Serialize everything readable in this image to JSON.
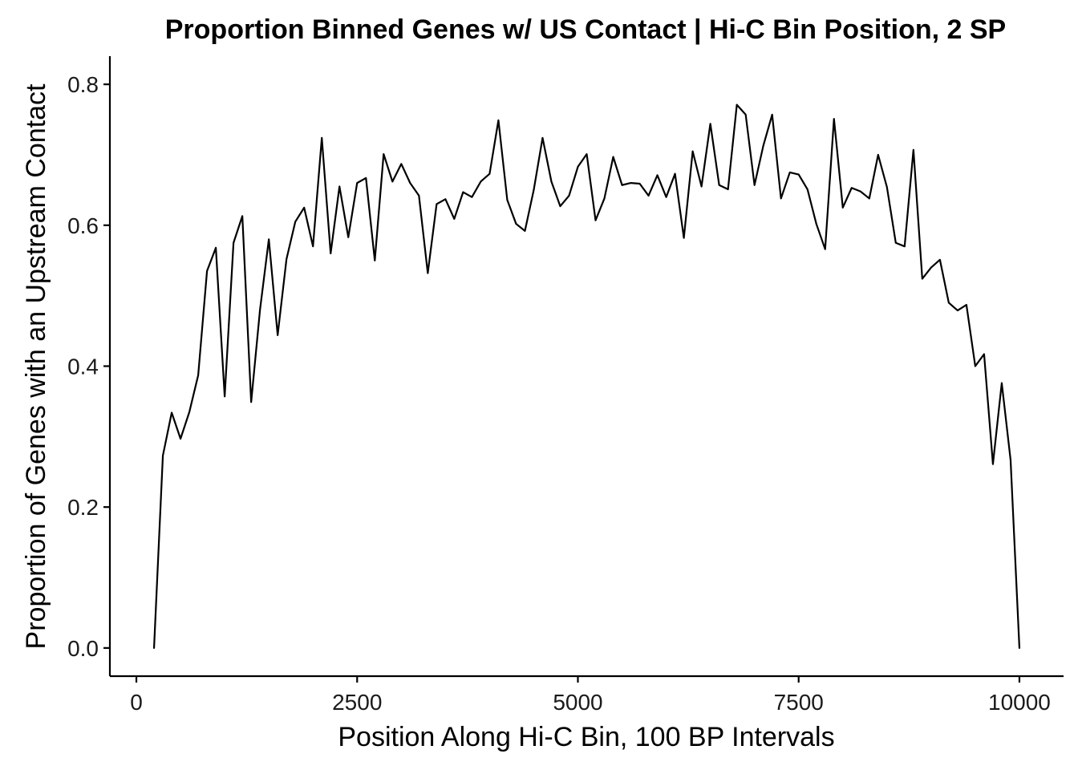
{
  "chart_data": {
    "type": "line",
    "title": "Proportion Binned Genes w/ US Contact | Hi-C Bin Position, 2 SP",
    "xlabel": "Position Along Hi-C Bin, 100 BP Intervals",
    "ylabel": "Proportion of Genes with an Upstream Contact",
    "xlim": [
      -300,
      10500
    ],
    "ylim": [
      -0.04,
      0.84
    ],
    "xticks": [
      0,
      2500,
      5000,
      7500,
      10000
    ],
    "xtick_labels": [
      "0",
      "2500",
      "5000",
      "7500",
      "10000"
    ],
    "yticks": [
      0.0,
      0.2,
      0.4,
      0.6,
      0.8
    ],
    "ytick_labels": [
      "0.0",
      "0.2",
      "0.4",
      "0.6",
      "0.8"
    ],
    "grid": false,
    "line_color": "#000000",
    "series": [
      {
        "x": [
          200,
          300,
          400,
          500,
          600,
          700,
          800,
          900,
          1000,
          1100,
          1200,
          1300,
          1400,
          1500,
          1600,
          1700,
          1800,
          1900,
          2000,
          2100,
          2200,
          2300,
          2400,
          2500,
          2600,
          2700,
          2800,
          2900,
          3000,
          3100,
          3200,
          3300,
          3400,
          3500,
          3600,
          3700,
          3800,
          3900,
          4000,
          4100,
          4200,
          4300,
          4400,
          4500,
          4600,
          4700,
          4800,
          4900,
          5000,
          5100,
          5200,
          5300,
          5400,
          5500,
          5600,
          5700,
          5800,
          5900,
          6000,
          6100,
          6200,
          6300,
          6400,
          6500,
          6600,
          6700,
          6800,
          6900,
          7000,
          7100,
          7200,
          7300,
          7400,
          7500,
          7600,
          7700,
          7800,
          7900,
          8000,
          8100,
          8200,
          8300,
          8400,
          8500,
          8600,
          8700,
          8800,
          8900,
          9000,
          9100,
          9200,
          9300,
          9400,
          9500,
          9600,
          9700,
          9800,
          9900,
          10000
        ],
        "values": [
          0.0,
          0.273,
          0.334,
          0.297,
          0.335,
          0.387,
          0.535,
          0.568,
          0.357,
          0.575,
          0.613,
          0.349,
          0.48,
          0.58,
          0.444,
          0.552,
          0.605,
          0.625,
          0.57,
          0.724,
          0.56,
          0.655,
          0.583,
          0.66,
          0.667,
          0.55,
          0.701,
          0.662,
          0.687,
          0.66,
          0.642,
          0.532,
          0.63,
          0.637,
          0.609,
          0.647,
          0.64,
          0.662,
          0.673,
          0.749,
          0.636,
          0.602,
          0.592,
          0.65,
          0.724,
          0.662,
          0.627,
          0.642,
          0.683,
          0.701,
          0.607,
          0.638,
          0.697,
          0.657,
          0.66,
          0.659,
          0.642,
          0.671,
          0.64,
          0.673,
          0.582,
          0.705,
          0.655,
          0.744,
          0.657,
          0.651,
          0.771,
          0.757,
          0.657,
          0.713,
          0.757,
          0.638,
          0.675,
          0.672,
          0.651,
          0.602,
          0.566,
          0.751,
          0.625,
          0.653,
          0.648,
          0.638,
          0.7,
          0.654,
          0.575,
          0.57,
          0.707,
          0.524,
          0.54,
          0.551,
          0.49,
          0.479,
          0.487,
          0.4,
          0.417,
          0.261,
          0.376,
          0.267,
          0.0
        ]
      }
    ]
  }
}
